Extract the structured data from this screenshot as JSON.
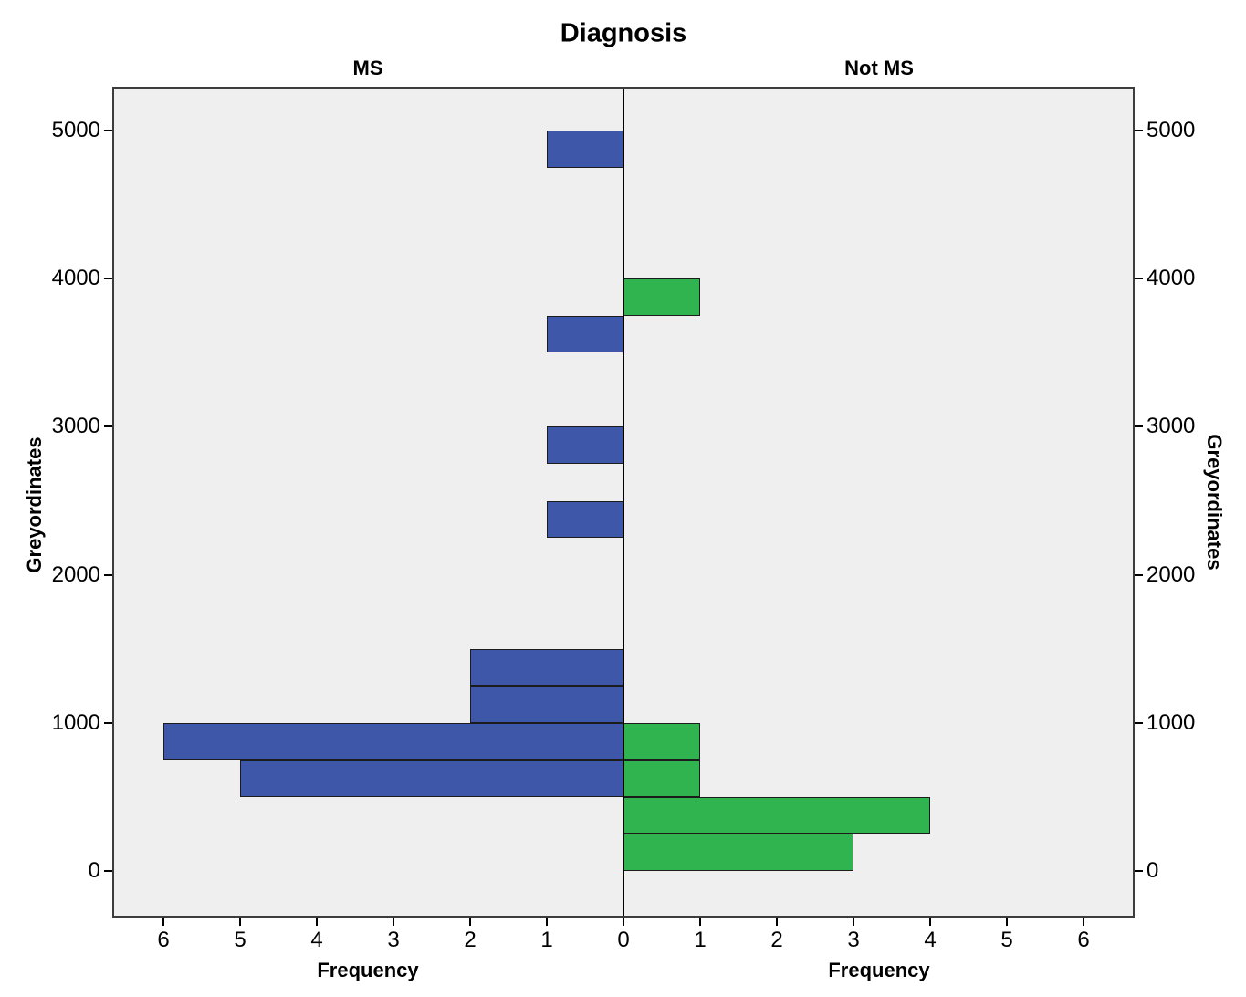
{
  "chart_data": {
    "type": "bar",
    "subtype": "population-pyramid-histogram",
    "title": "Diagnosis",
    "ylabel": "Greyordinates",
    "bin_width": 250,
    "y_ticks": [
      0,
      1000,
      2000,
      3000,
      4000,
      5000
    ],
    "x_ticks": [
      0,
      1,
      2,
      3,
      4,
      5,
      6
    ],
    "xlim_each_side": [
      0,
      6.67
    ],
    "ylim": [
      -320,
      5300
    ],
    "grid": false,
    "legend": false,
    "colors": {
      "ms_bar": "#3F57A8",
      "not_ms_bar": "#2FB44F",
      "panel_bg": "#F0EFEF",
      "bar_border": "#1C1C1C",
      "frame": "#3C3C3C",
      "axis_line": "#000000"
    },
    "panels": [
      {
        "label": "MS",
        "side": "left",
        "xlabel": "Frequency",
        "color_key": "ms_bar",
        "bars": [
          {
            "bin": [
              4750,
              5000
            ],
            "frequency": 1
          },
          {
            "bin": [
              3500,
              3750
            ],
            "frequency": 1
          },
          {
            "bin": [
              2750,
              3000
            ],
            "frequency": 1
          },
          {
            "bin": [
              2250,
              2500
            ],
            "frequency": 1
          },
          {
            "bin": [
              1250,
              1500
            ],
            "frequency": 2
          },
          {
            "bin": [
              1000,
              1250
            ],
            "frequency": 2
          },
          {
            "bin": [
              750,
              1000
            ],
            "frequency": 6
          },
          {
            "bin": [
              500,
              750
            ],
            "frequency": 5
          }
        ]
      },
      {
        "label": "Not MS",
        "side": "right",
        "xlabel": "Frequency",
        "color_key": "not_ms_bar",
        "bars": [
          {
            "bin": [
              3750,
              4000
            ],
            "frequency": 1
          },
          {
            "bin": [
              750,
              1000
            ],
            "frequency": 1
          },
          {
            "bin": [
              500,
              750
            ],
            "frequency": 1
          },
          {
            "bin": [
              250,
              500
            ],
            "frequency": 4
          },
          {
            "bin": [
              0,
              250
            ],
            "frequency": 3
          }
        ]
      }
    ]
  }
}
